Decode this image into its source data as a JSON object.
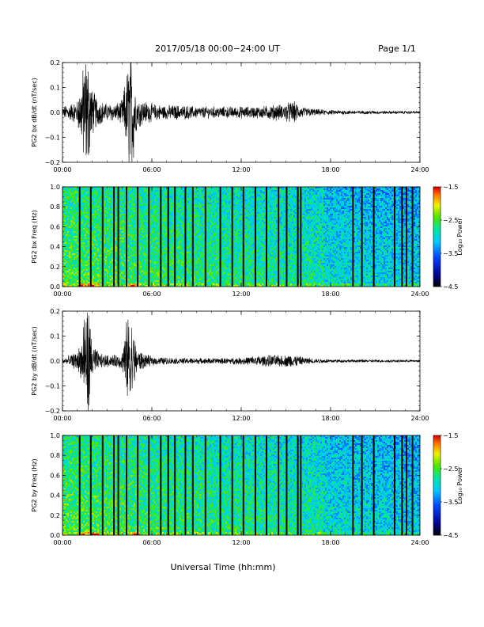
{
  "header": {
    "title": "2017/05/18  00:00−24:00 UT",
    "page": "Page 1/1"
  },
  "x_axis_label": "Universal Time (hh:mm)",
  "chart_data": [
    {
      "type": "line",
      "ylabel": "PG2 bx dB/dt (nT/sec)",
      "xlim": [
        "00:00",
        "24:00"
      ],
      "x_ticks": [
        "00:00",
        "06:00",
        "12:00",
        "18:00",
        "24:00"
      ],
      "ylim": [
        -0.2,
        0.2
      ],
      "y_ticks": [
        "0.2",
        "0.1",
        "0.0",
        "−0.1",
        "−0.2"
      ],
      "y_tick_values": [
        0.2,
        0.1,
        0.0,
        -0.1,
        -0.2
      ],
      "series": [
        {
          "x_hours": [
            0,
            1,
            1.3,
            1.5,
            1.7,
            2,
            2.5,
            3,
            3.5,
            4,
            4.5,
            4.7,
            5,
            5.5,
            6,
            7,
            8,
            9,
            10,
            11,
            12,
            13,
            14,
            15,
            15.5,
            16,
            17,
            18,
            19,
            20,
            21,
            22,
            23,
            24
          ],
          "amplitude": [
            0.02,
            0.04,
            0.12,
            0.2,
            0.2,
            0.08,
            0.04,
            0.03,
            0.03,
            0.04,
            0.2,
            0.2,
            0.05,
            0.04,
            0.03,
            0.025,
            0.025,
            0.02,
            0.02,
            0.02,
            0.02,
            0.02,
            0.025,
            0.03,
            0.04,
            0.02,
            0.012,
            0.008,
            0.007,
            0.006,
            0.006,
            0.005,
            0.005,
            0.004
          ]
        }
      ]
    },
    {
      "type": "heatmap",
      "ylabel": "PG2 bx Freq (Hz)",
      "xlim": [
        "00:00",
        "24:00"
      ],
      "x_ticks": [
        "00:00",
        "06:00",
        "12:00",
        "18:00",
        "24:00"
      ],
      "ylim": [
        0.0,
        1.0
      ],
      "y_ticks": [
        "1.0",
        "0.8",
        "0.6",
        "0.4",
        "0.2",
        "0.0"
      ],
      "y_tick_values": [
        1.0,
        0.8,
        0.6,
        0.4,
        0.2,
        0.0
      ],
      "colorbar": {
        "label": "Log₁₀ Power",
        "range": [
          -4.5,
          -1.5
        ],
        "ticks": [
          "−1.5",
          "−2.5",
          "−3.5",
          "−4.5"
        ],
        "tick_values": [
          -1.5,
          -2.5,
          -3.5,
          -4.5
        ]
      },
      "gap_hours": [
        1.15,
        1.9,
        2.7,
        3.45,
        3.75,
        4.3,
        5.05,
        5.8,
        6.6,
        7.1,
        7.55,
        8.25,
        8.75,
        9.6,
        10.6,
        11.4,
        12.15,
        12.95,
        13.7,
        14.5,
        15.05,
        15.8,
        16.0,
        19.5,
        20.1,
        20.9,
        22.3,
        22.8,
        23.1,
        23.5
      ]
    },
    {
      "type": "line",
      "ylabel": "PG2 by dB/dt (nT/sec)",
      "xlim": [
        "00:00",
        "24:00"
      ],
      "x_ticks": [
        "00:00",
        "06:00",
        "12:00",
        "18:00",
        "24:00"
      ],
      "ylim": [
        -0.2,
        0.2
      ],
      "y_ticks": [
        "0.2",
        "0.1",
        "0.0",
        "−0.1",
        "−0.2"
      ],
      "y_tick_values": [
        0.2,
        0.1,
        0.0,
        -0.1,
        -0.2
      ],
      "series": [
        {
          "x_hours": [
            0,
            1,
            1.3,
            1.5,
            1.7,
            2,
            2.5,
            3,
            3.5,
            4,
            4.5,
            4.7,
            5,
            5.5,
            6,
            7,
            8,
            9,
            10,
            11,
            12,
            13,
            14,
            15,
            15.5,
            16,
            17,
            18,
            19,
            20,
            21,
            22,
            23,
            24
          ],
          "amplitude": [
            0.01,
            0.03,
            0.08,
            0.2,
            0.2,
            0.06,
            0.025,
            0.02,
            0.02,
            0.03,
            0.2,
            0.12,
            0.04,
            0.025,
            0.015,
            0.012,
            0.01,
            0.01,
            0.01,
            0.01,
            0.012,
            0.018,
            0.02,
            0.02,
            0.025,
            0.015,
            0.008,
            0.006,
            0.005,
            0.005,
            0.005,
            0.004,
            0.004,
            0.004
          ]
        }
      ]
    },
    {
      "type": "heatmap",
      "ylabel": "PG2 by Freq (Hz)",
      "xlim": [
        "00:00",
        "24:00"
      ],
      "x_ticks": [
        "00:00",
        "06:00",
        "12:00",
        "18:00",
        "24:00"
      ],
      "ylim": [
        0.0,
        1.0
      ],
      "y_ticks": [
        "1.0",
        "0.8",
        "0.6",
        "0.4",
        "0.2",
        "0.0"
      ],
      "y_tick_values": [
        1.0,
        0.8,
        0.6,
        0.4,
        0.2,
        0.0
      ],
      "colorbar": {
        "label": "Log₁₀ Power",
        "range": [
          -4.5,
          -1.5
        ],
        "ticks": [
          "−1.5",
          "−2.5",
          "−3.5",
          "−4.5"
        ],
        "tick_values": [
          -1.5,
          -2.5,
          -3.5,
          -4.5
        ]
      },
      "gap_hours": [
        1.15,
        1.9,
        2.7,
        3.45,
        3.75,
        4.3,
        5.05,
        5.8,
        6.6,
        7.1,
        7.55,
        8.25,
        8.75,
        9.6,
        10.6,
        11.4,
        12.15,
        12.95,
        13.7,
        14.5,
        15.05,
        15.8,
        16.0,
        19.5,
        20.1,
        20.9,
        22.3,
        22.8,
        23.1,
        23.5
      ]
    }
  ]
}
